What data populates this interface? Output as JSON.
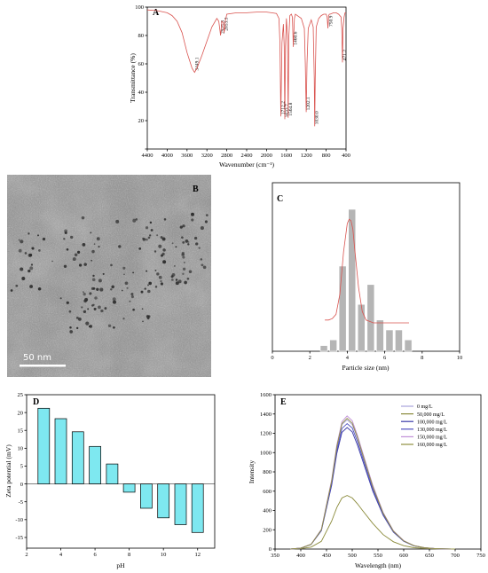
{
  "chart_data": [
    {
      "panel": "A",
      "type": "line",
      "xlabel": "Wavenumber (cm⁻¹)",
      "ylabel": "Transmittance (%)",
      "xlim": [
        4400,
        400
      ],
      "ylim": [
        0,
        100
      ],
      "xticks": [
        4400,
        4000,
        3600,
        3200,
        2800,
        2400,
        2000,
        1600,
        1200,
        800,
        400
      ],
      "yticks": [
        0,
        20,
        40,
        60,
        80,
        100
      ],
      "peaks": [
        {
          "x": 3449,
          "label": "3449.1"
        },
        {
          "x": 2925,
          "label": "2925.3"
        },
        {
          "x": 2853,
          "label": "2853.3"
        },
        {
          "x": 1712,
          "label": "1712.2"
        },
        {
          "x": 1633,
          "label": "1633.7"
        },
        {
          "x": 1564,
          "label": "1564.8"
        },
        {
          "x": 1460,
          "label": "1460.6"
        },
        {
          "x": 1202,
          "label": "1202.1"
        },
        {
          "x": 1030,
          "label": "1030.0"
        },
        {
          "x": 750,
          "label": "750.9"
        },
        {
          "x": 471,
          "label": "471.2"
        }
      ],
      "x": [
        4400,
        4200,
        4000,
        3900,
        3800,
        3700,
        3600,
        3500,
        3449,
        3400,
        3300,
        3200,
        3100,
        3000,
        2960,
        2925,
        2900,
        2870,
        2853,
        2830,
        2800,
        2600,
        2400,
        2200,
        2000,
        1900,
        1800,
        1750,
        1730,
        1712,
        1690,
        1660,
        1645,
        1633,
        1620,
        1600,
        1580,
        1564,
        1550,
        1530,
        1500,
        1480,
        1460,
        1440,
        1420,
        1380,
        1300,
        1240,
        1220,
        1202,
        1185,
        1160,
        1100,
        1060,
        1040,
        1030,
        1020,
        1000,
        950,
        900,
        850,
        800,
        780,
        765,
        750,
        735,
        720,
        650,
        600,
        550,
        500,
        485,
        471,
        460,
        440,
        420,
        400
      ],
      "y": [
        98,
        97.5,
        96,
        94,
        90,
        82,
        68,
        57,
        54,
        57,
        66,
        76,
        86,
        92,
        90,
        80,
        90,
        89,
        82,
        90,
        95,
        96,
        96,
        96.5,
        96.5,
        96,
        95.5,
        92,
        75,
        23,
        75,
        88,
        72,
        21,
        72,
        92,
        80,
        22,
        80,
        94,
        95,
        93,
        72,
        92,
        95,
        94,
        92,
        85,
        60,
        26,
        60,
        85,
        91,
        86,
        50,
        16,
        50,
        86,
        92,
        94,
        95,
        95,
        93,
        85,
        94,
        95,
        95,
        96,
        96,
        95,
        93,
        85,
        61,
        85,
        93,
        96,
        96
      ]
    },
    {
      "panel": "C",
      "type": "bar",
      "xlabel": "Particle size (nm)",
      "xlim": [
        0,
        10
      ],
      "xticks": [
        0,
        2,
        4,
        6,
        8,
        10
      ],
      "bins": [
        2.75,
        3.25,
        3.75,
        4.25,
        4.75,
        5.25,
        5.75,
        6.25,
        6.75,
        7.25
      ],
      "values": [
        4,
        8,
        60,
        100,
        33,
        47,
        22,
        15,
        15,
        8
      ],
      "fit_x": [
        2.8,
        3.0,
        3.2,
        3.4,
        3.6,
        3.8,
        4.0,
        4.1,
        4.2,
        4.3,
        4.4,
        4.6,
        4.8,
        5.0,
        5.2,
        5.4,
        5.6,
        6.0,
        7.0,
        7.3
      ],
      "fit_y": [
        22,
        22,
        23,
        26,
        40,
        70,
        90,
        93,
        92,
        86,
        72,
        45,
        28,
        22,
        21,
        20,
        20,
        20,
        20,
        20
      ]
    },
    {
      "panel": "D",
      "type": "bar",
      "xlabel": "pH",
      "ylabel": "Zeta potential (mV)",
      "xlim": [
        2,
        13
      ],
      "ylim": [
        -18,
        25
      ],
      "xticks": [
        2,
        4,
        6,
        8,
        10,
        12
      ],
      "yticks": [
        -15,
        -10,
        -5,
        0,
        5,
        10,
        15,
        20,
        25
      ],
      "categories": [
        3,
        4,
        5,
        6,
        7,
        8,
        9,
        10,
        11,
        12
      ],
      "values": [
        21.2,
        18.3,
        14.6,
        10.5,
        5.6,
        -2.3,
        -6.8,
        -9.5,
        -11.4,
        -13.6
      ]
    },
    {
      "panel": "E",
      "type": "line",
      "xlabel": "Wavelength (nm)",
      "ylabel": "Intensity",
      "xlim": [
        350,
        750
      ],
      "ylim": [
        0,
        1600
      ],
      "xticks": [
        350,
        400,
        450,
        500,
        550,
        600,
        650,
        700,
        750
      ],
      "yticks": [
        0,
        200,
        400,
        600,
        800,
        1000,
        1200,
        1400,
        1600
      ],
      "x": [
        380,
        400,
        420,
        440,
        460,
        470,
        480,
        490,
        500,
        510,
        520,
        540,
        560,
        580,
        600,
        620,
        640,
        660,
        680,
        700
      ],
      "series": [
        {
          "name": "0 mg/L",
          "color": "#a8a4dc",
          "values": [
            0,
            10,
            50,
            200,
            700,
            1050,
            1290,
            1340,
            1290,
            1150,
            980,
            640,
            370,
            185,
            85,
            35,
            14,
            5,
            2,
            0
          ]
        },
        {
          "name": "50,000 mg/L",
          "color": "#8a8a3a",
          "values": [
            0,
            4,
            20,
            80,
            290,
            430,
            530,
            555,
            530,
            470,
            400,
            265,
            150,
            75,
            35,
            14,
            6,
            2,
            1,
            0
          ]
        },
        {
          "name": "100,000 mg/L",
          "color": "#3a3aa8",
          "values": [
            0,
            9,
            47,
            190,
            660,
            990,
            1210,
            1260,
            1215,
            1080,
            920,
            600,
            350,
            175,
            80,
            33,
            13,
            5,
            2,
            0
          ]
        },
        {
          "name": "130,000 mg/L",
          "color": "#5050c0",
          "values": [
            0,
            9,
            48,
            195,
            680,
            1020,
            1250,
            1300,
            1255,
            1115,
            950,
            620,
            360,
            180,
            82,
            34,
            13,
            5,
            2,
            0
          ]
        },
        {
          "name": "150,000 mg/L",
          "color": "#c090d8",
          "values": [
            0,
            10,
            50,
            205,
            720,
            1080,
            1320,
            1380,
            1330,
            1180,
            1005,
            660,
            380,
            190,
            87,
            36,
            14,
            5,
            2,
            0
          ]
        },
        {
          "name": "160,000 mg/L",
          "color": "#909040",
          "values": [
            0,
            10,
            49,
            200,
            705,
            1060,
            1300,
            1355,
            1305,
            1160,
            985,
            645,
            372,
            186,
            85,
            35,
            14,
            5,
            2,
            0
          ]
        }
      ]
    }
  ],
  "panels": {
    "a": "A",
    "b": "B",
    "c": "C",
    "d": "D",
    "e": "E"
  },
  "scalebar_label": "50  nm",
  "colors": {
    "ftir_line": "#d9534f",
    "hist_bar": "#b5b5b5",
    "zeta_bar": "#7ee8f0",
    "fit_line": "#d9534f"
  }
}
